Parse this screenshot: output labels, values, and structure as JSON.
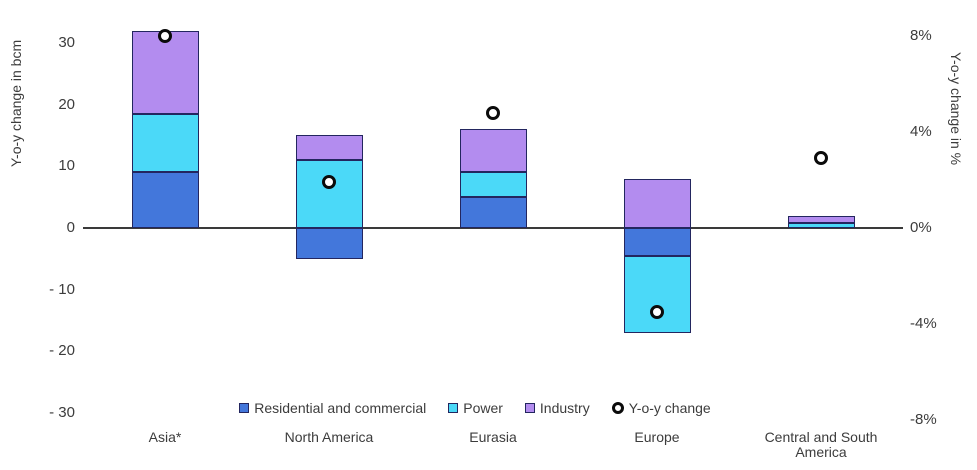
{
  "chart_data": {
    "type": "bar",
    "subtype": "stacked-bar-with-secondary-axis-scatter",
    "background": "#FFFFFF",
    "categories": [
      "Asia*",
      "North America",
      "Eurasia",
      "Europe",
      "Central and South America"
    ],
    "series": [
      {
        "name": "Residential and commercial",
        "kind": "bar",
        "axis": "left",
        "color": "#4377DB",
        "values": [
          9,
          -5,
          5,
          -4.5,
          0
        ]
      },
      {
        "name": "Power",
        "kind": "bar",
        "axis": "left",
        "color": "#4BD9F8",
        "values": [
          9.5,
          11,
          4,
          -12.5,
          0.8
        ]
      },
      {
        "name": "Industry",
        "kind": "bar",
        "axis": "left",
        "color": "#B38CEF",
        "values": [
          13.5,
          4,
          7,
          8,
          1.2
        ]
      },
      {
        "name": "Y-o-y change",
        "kind": "scatter",
        "axis": "right",
        "marker": "open-circle",
        "color": "#000000",
        "values": [
          8,
          1.9,
          4.8,
          -3.5,
          2.9
        ]
      }
    ],
    "left_axis": {
      "title": "Y-o-y change in bcm",
      "unit": "bcm",
      "range": [
        -35,
        35
      ],
      "ticks": [
        {
          "value": 30,
          "label": "30"
        },
        {
          "value": 20,
          "label": "20"
        },
        {
          "value": 10,
          "label": "10"
        },
        {
          "value": 0,
          "label": "0"
        },
        {
          "value": -10,
          "label": "- 10"
        },
        {
          "value": -20,
          "label": "- 20"
        },
        {
          "value": -30,
          "label": "- 30"
        }
      ]
    },
    "right_axis": {
      "title": "Y-o-y change in %",
      "unit": "%",
      "range": [
        -9,
        9
      ],
      "ticks": [
        {
          "value": 8,
          "label": "8%"
        },
        {
          "value": 4,
          "label": "4%"
        },
        {
          "value": 0,
          "label": "0%"
        },
        {
          "value": -4,
          "label": "-4%"
        },
        {
          "value": -8,
          "label": "-8%"
        }
      ]
    },
    "legend": {
      "position": "bottom",
      "items": [
        {
          "label": "Residential and commercial",
          "swatch": "square",
          "color": "#4377DB"
        },
        {
          "label": "Power",
          "swatch": "square",
          "color": "#4BD9F8"
        },
        {
          "label": "Industry",
          "swatch": "square",
          "color": "#B38CEF"
        },
        {
          "label": "Y-o-y change",
          "swatch": "open-circle",
          "color": "#000000"
        }
      ]
    },
    "grid": "off",
    "styles": {
      "segment_border": "#23265F",
      "axis_line": "#3A3A3A",
      "text": "#3C3C3C"
    }
  }
}
